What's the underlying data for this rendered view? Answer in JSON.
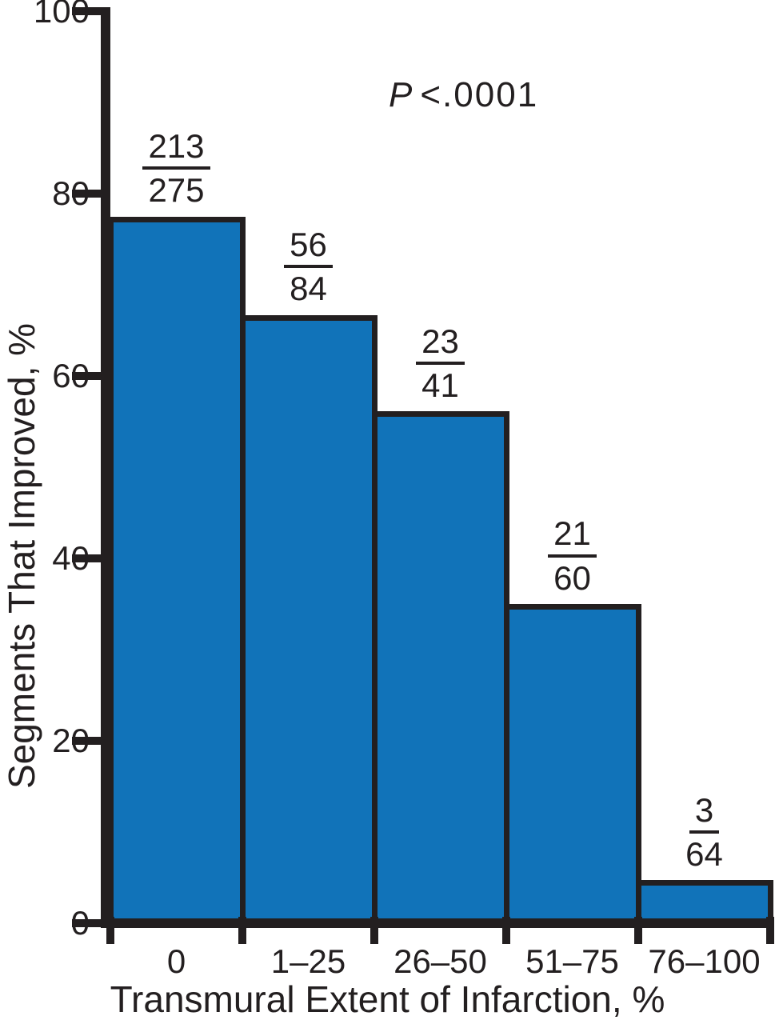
{
  "chart_data": {
    "type": "bar",
    "xlabel": "Transmural Extent of Infarction, %",
    "ylabel": "Segments That Improved, %",
    "annotation": {
      "symbol": "P",
      "rest": "<.0001",
      "text": "P < .0001"
    },
    "categories": [
      "0",
      "1–25",
      "26–50",
      "51–75",
      "76–100"
    ],
    "values": [
      77.5,
      66.7,
      56.1,
      35.0,
      4.7
    ],
    "fractions": [
      {
        "numerator": "213",
        "denominator": "275"
      },
      {
        "numerator": "56",
        "denominator": "84"
      },
      {
        "numerator": "23",
        "denominator": "41"
      },
      {
        "numerator": "21",
        "denominator": "60"
      },
      {
        "numerator": "3",
        "denominator": "64"
      }
    ],
    "yticks": [
      0,
      20,
      40,
      60,
      80,
      100
    ],
    "ylim": [
      0,
      100
    ],
    "grid": false,
    "legend": "none",
    "bar_color": "#1173B9",
    "ink_color": "#231F20"
  }
}
